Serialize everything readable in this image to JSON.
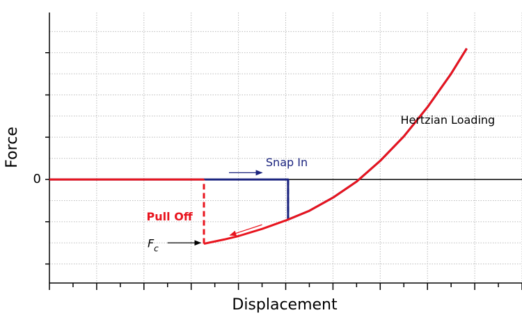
{
  "chart_data": {
    "type": "line",
    "title": "",
    "xlabel": "Displacement",
    "ylabel": "Force",
    "xlim": [
      0,
      10
    ],
    "ylim": [
      -2.45,
      3.95
    ],
    "grid": true,
    "y_tick_labels": [
      {
        "value": 0,
        "label": "0"
      }
    ],
    "colors": {
      "approach": "#1a237e",
      "retract": "#e8141e",
      "axis": "#000000",
      "grid": "#bbbbbb"
    },
    "series": [
      {
        "segment": "approach",
        "style": "solid",
        "x": [
          0,
          5.05,
          5.05,
          5.5,
          6.0,
          6.5,
          7.0,
          7.5,
          8.0,
          8.5,
          8.83
        ],
        "y": [
          0,
          0,
          -0.95,
          -0.74,
          -0.43,
          -0.05,
          0.44,
          1.02,
          1.71,
          2.5,
          3.1
        ]
      },
      {
        "segment": "approach-snap-in-jump",
        "style": "dashed",
        "x": [
          5.05,
          5.05
        ],
        "y": [
          0,
          -0.95
        ]
      },
      {
        "segment": "retract",
        "style": "solid",
        "x": [
          8.83,
          8.5,
          8.0,
          7.5,
          7.0,
          6.5,
          6.0,
          5.5,
          5.05,
          4.5,
          4.0,
          3.7,
          3.27
        ],
        "y": [
          3.1,
          2.5,
          1.71,
          1.02,
          0.44,
          -0.05,
          -0.43,
          -0.74,
          -0.95,
          -1.17,
          -1.34,
          -1.42,
          -1.52
        ]
      },
      {
        "segment": "retract-pull-off-jump",
        "style": "dashed",
        "x": [
          3.27,
          3.27
        ],
        "y": [
          -1.52,
          0
        ]
      },
      {
        "segment": "retract-baseline",
        "style": "solid",
        "x": [
          3.27,
          0
        ],
        "y": [
          0,
          0
        ]
      }
    ],
    "annotations": [
      {
        "text": "Snap In",
        "color": "#1a237e",
        "x": 5.05,
        "y": 0.35
      },
      {
        "text": "Hertzian Loading",
        "color": "#000000",
        "x": 7.4,
        "y": 1.35
      },
      {
        "text": "Pull Off",
        "color": "#e8141e",
        "x": 2.6,
        "y": -0.9
      },
      {
        "text": "F",
        "subscript": "c",
        "color": "#000000",
        "x": 2.4,
        "y": -1.5
      }
    ]
  }
}
